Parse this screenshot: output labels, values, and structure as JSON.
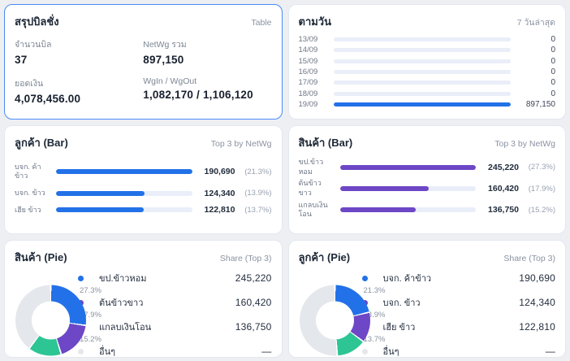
{
  "colors": {
    "blue": "#2271e8",
    "purple": "#6d47c6",
    "green": "#2dc593",
    "gray": "#e4e7eb"
  },
  "cards": {
    "summary": {
      "title": "สรุปบิลชั่ง",
      "action_label": "Table",
      "stats": [
        {
          "label": "จำนวนบิล",
          "value": "37"
        },
        {
          "label": "NetWg รวม",
          "value": "897,150"
        },
        {
          "label": "ยอดเงิน",
          "value": "4,078,456.00"
        },
        {
          "label": "WgIn / WgOut",
          "value": "1,082,170 / 1,106,120"
        }
      ]
    },
    "daily": {
      "title": "ตามวัน",
      "subtitle": "7 วันล่าสุด"
    },
    "customer_bar": {
      "title": "ลูกค้า (Bar)",
      "subtitle": "Top 3 by NetWg"
    },
    "product_bar": {
      "title": "สินค้า (Bar)",
      "subtitle": "Top 3 by NetWg"
    },
    "product_pie": {
      "title": "สินค้า (Pie)",
      "subtitle": "Share (Top 3)"
    },
    "customer_pie": {
      "title": "ลูกค้า (Pie)",
      "subtitle": "Share (Top 3)"
    }
  },
  "chart_data": [
    {
      "id": "daily",
      "type": "bar",
      "orientation": "horizontal",
      "title": "ตามวัน",
      "subtitle": "7 วันล่าสุด",
      "categories": [
        "13/09",
        "14/09",
        "15/09",
        "16/09",
        "17/09",
        "18/09",
        "19/09"
      ],
      "values": [
        0,
        0,
        0,
        0,
        0,
        0,
        897150
      ],
      "value_labels": [
        "0",
        "0",
        "0",
        "0",
        "0",
        "0",
        "897,150"
      ],
      "xlim": [
        0,
        897150
      ],
      "color_key": "blue"
    },
    {
      "id": "customer_bar",
      "type": "bar",
      "orientation": "horizontal",
      "title": "ลูกค้า (Bar)",
      "subtitle": "Top 3 by NetWg",
      "categories": [
        "บจก. ค้าข้าว",
        "บจก. ข้าว",
        "เฮีย ข้าว"
      ],
      "values": [
        190690,
        124340,
        122810
      ],
      "value_labels": [
        "190,690",
        "124,340",
        "122,810"
      ],
      "pct_labels": [
        "(21.3%)",
        "(13.9%)",
        "(13.7%)"
      ],
      "color_key": "blue"
    },
    {
      "id": "product_bar",
      "type": "bar",
      "orientation": "horizontal",
      "title": "สินค้า (Bar)",
      "subtitle": "Top 3 by NetWg",
      "categories": [
        "ขป.ข้าวหอม",
        "ต้นข้าวขาว",
        "แกลบเงินโอน"
      ],
      "values": [
        245220,
        160420,
        136750
      ],
      "value_labels": [
        "245,220",
        "160,420",
        "136,750"
      ],
      "pct_labels": [
        "(27.3%)",
        "(17.9%)",
        "(15.2%)"
      ],
      "color_key": "purple"
    },
    {
      "id": "product_pie",
      "type": "pie",
      "title": "สินค้า (Pie)",
      "subtitle": "Share (Top 3)",
      "slices": [
        {
          "label": "ขป.ข้าวหอม",
          "value": 245220,
          "value_label": "245,220",
          "pct": 27.3,
          "pct_label": "27.3%",
          "color_key": "blue"
        },
        {
          "label": "ต้นข้าวขาว",
          "value": 160420,
          "value_label": "160,420",
          "pct": 17.9,
          "pct_label": "17.9%",
          "color_key": "purple"
        },
        {
          "label": "แกลบเงินโอน",
          "value": 136750,
          "value_label": "136,750",
          "pct": 15.2,
          "pct_label": "15.2%",
          "color_key": "green"
        },
        {
          "label": "อื่นๆ",
          "value": null,
          "value_label": "—",
          "pct": 39.6,
          "pct_label": "39.6%",
          "color_key": "gray"
        }
      ]
    },
    {
      "id": "customer_pie",
      "type": "pie",
      "title": "ลูกค้า (Pie)",
      "subtitle": "Share (Top 3)",
      "slices": [
        {
          "label": "บจก. ค้าข้าว",
          "value": 190690,
          "value_label": "190,690",
          "pct": 21.3,
          "pct_label": "21.3%",
          "color_key": "blue"
        },
        {
          "label": "บจก. ข้าว",
          "value": 124340,
          "value_label": "124,340",
          "pct": 13.9,
          "pct_label": "13.9%",
          "color_key": "purple"
        },
        {
          "label": "เฮีย ข้าว",
          "value": 122810,
          "value_label": "122,810",
          "pct": 13.7,
          "pct_label": "13.7%",
          "color_key": "green"
        },
        {
          "label": "อื่นๆ",
          "value": null,
          "value_label": "—",
          "pct": 51.1,
          "pct_label": "51.1%",
          "color_key": "gray"
        }
      ]
    }
  ]
}
